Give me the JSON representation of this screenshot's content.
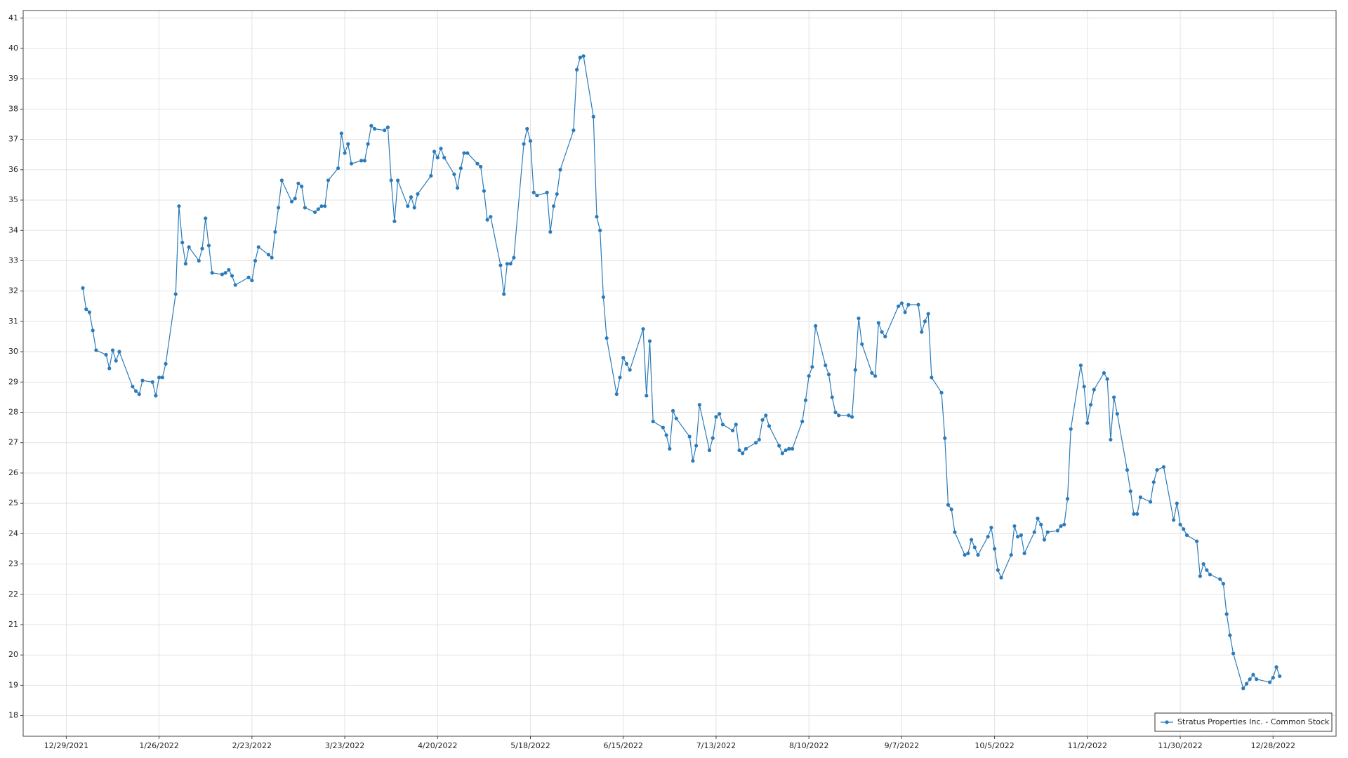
{
  "chart_data": {
    "type": "line",
    "x": [
      "2022-01-03",
      "2022-01-04",
      "2022-01-05",
      "2022-01-06",
      "2022-01-07",
      "2022-01-10",
      "2022-01-11",
      "2022-01-12",
      "2022-01-13",
      "2022-01-14",
      "2022-01-18",
      "2022-01-19",
      "2022-01-20",
      "2022-01-21",
      "2022-01-24",
      "2022-01-25",
      "2022-01-26",
      "2022-01-27",
      "2022-01-28",
      "2022-01-31",
      "2022-02-01",
      "2022-02-02",
      "2022-02-03",
      "2022-02-04",
      "2022-02-07",
      "2022-02-08",
      "2022-02-09",
      "2022-02-10",
      "2022-02-11",
      "2022-02-14",
      "2022-02-15",
      "2022-02-16",
      "2022-02-17",
      "2022-02-18",
      "2022-02-22",
      "2022-02-23",
      "2022-02-24",
      "2022-02-25",
      "2022-02-28",
      "2022-03-01",
      "2022-03-02",
      "2022-03-03",
      "2022-03-04",
      "2022-03-07",
      "2022-03-08",
      "2022-03-09",
      "2022-03-10",
      "2022-03-11",
      "2022-03-14",
      "2022-03-15",
      "2022-03-16",
      "2022-03-17",
      "2022-03-18",
      "2022-03-21",
      "2022-03-22",
      "2022-03-23",
      "2022-03-24",
      "2022-03-25",
      "2022-03-28",
      "2022-03-29",
      "2022-03-30",
      "2022-03-31",
      "2022-04-01",
      "2022-04-04",
      "2022-04-05",
      "2022-04-06",
      "2022-04-07",
      "2022-04-08",
      "2022-04-11",
      "2022-04-12",
      "2022-04-13",
      "2022-04-14",
      "2022-04-18",
      "2022-04-19",
      "2022-04-20",
      "2022-04-21",
      "2022-04-22",
      "2022-04-25",
      "2022-04-26",
      "2022-04-27",
      "2022-04-28",
      "2022-04-29",
      "2022-05-02",
      "2022-05-03",
      "2022-05-04",
      "2022-05-05",
      "2022-05-06",
      "2022-05-09",
      "2022-05-10",
      "2022-05-11",
      "2022-05-12",
      "2022-05-13",
      "2022-05-16",
      "2022-05-17",
      "2022-05-18",
      "2022-05-19",
      "2022-05-20",
      "2022-05-23",
      "2022-05-24",
      "2022-05-25",
      "2022-05-26",
      "2022-05-27",
      "2022-05-31",
      "2022-06-01",
      "2022-06-02",
      "2022-06-03",
      "2022-06-06",
      "2022-06-07",
      "2022-06-08",
      "2022-06-09",
      "2022-06-10",
      "2022-06-13",
      "2022-06-14",
      "2022-06-15",
      "2022-06-16",
      "2022-06-17",
      "2022-06-21",
      "2022-06-22",
      "2022-06-23",
      "2022-06-24",
      "2022-06-27",
      "2022-06-28",
      "2022-06-29",
      "2022-06-30",
      "2022-07-01",
      "2022-07-05",
      "2022-07-06",
      "2022-07-07",
      "2022-07-08",
      "2022-07-11",
      "2022-07-12",
      "2022-07-13",
      "2022-07-14",
      "2022-07-15",
      "2022-07-18",
      "2022-07-19",
      "2022-07-20",
      "2022-07-21",
      "2022-07-22",
      "2022-07-25",
      "2022-07-26",
      "2022-07-27",
      "2022-07-28",
      "2022-07-29",
      "2022-08-01",
      "2022-08-02",
      "2022-08-03",
      "2022-08-04",
      "2022-08-05",
      "2022-08-08",
      "2022-08-09",
      "2022-08-10",
      "2022-08-11",
      "2022-08-12",
      "2022-08-15",
      "2022-08-16",
      "2022-08-17",
      "2022-08-18",
      "2022-08-19",
      "2022-08-22",
      "2022-08-23",
      "2022-08-24",
      "2022-08-25",
      "2022-08-26",
      "2022-08-29",
      "2022-08-30",
      "2022-08-31",
      "2022-09-01",
      "2022-09-02",
      "2022-09-06",
      "2022-09-07",
      "2022-09-08",
      "2022-09-09",
      "2022-09-12",
      "2022-09-13",
      "2022-09-14",
      "2022-09-15",
      "2022-09-16",
      "2022-09-19",
      "2022-09-20",
      "2022-09-21",
      "2022-09-22",
      "2022-09-23",
      "2022-09-26",
      "2022-09-27",
      "2022-09-28",
      "2022-09-29",
      "2022-09-30",
      "2022-10-03",
      "2022-10-04",
      "2022-10-05",
      "2022-10-06",
      "2022-10-07",
      "2022-10-10",
      "2022-10-11",
      "2022-10-12",
      "2022-10-13",
      "2022-10-14",
      "2022-10-17",
      "2022-10-18",
      "2022-10-19",
      "2022-10-20",
      "2022-10-21",
      "2022-10-24",
      "2022-10-25",
      "2022-10-26",
      "2022-10-27",
      "2022-10-28",
      "2022-10-31",
      "2022-11-01",
      "2022-11-02",
      "2022-11-03",
      "2022-11-04",
      "2022-11-07",
      "2022-11-08",
      "2022-11-09",
      "2022-11-10",
      "2022-11-11",
      "2022-11-14",
      "2022-11-15",
      "2022-11-16",
      "2022-11-17",
      "2022-11-18",
      "2022-11-21",
      "2022-11-22",
      "2022-11-23",
      "2022-11-25",
      "2022-11-28",
      "2022-11-29",
      "2022-11-30",
      "2022-12-01",
      "2022-12-02",
      "2022-12-05",
      "2022-12-06",
      "2022-12-07",
      "2022-12-08",
      "2022-12-09",
      "2022-12-12",
      "2022-12-13",
      "2022-12-14",
      "2022-12-15",
      "2022-12-16",
      "2022-12-19",
      "2022-12-20",
      "2022-12-21",
      "2022-12-22",
      "2022-12-23",
      "2022-12-27",
      "2022-12-28",
      "2022-12-29",
      "2022-12-30"
    ],
    "series": [
      {
        "name": "Stratus Properties Inc. - Common Stock",
        "color": "#2b7bba",
        "values": [
          32.1,
          31.4,
          31.3,
          30.7,
          30.05,
          29.9,
          29.45,
          30.05,
          29.7,
          30.0,
          28.85,
          28.7,
          28.6,
          29.05,
          29.0,
          28.55,
          29.15,
          29.15,
          29.6,
          31.9,
          34.8,
          33.6,
          32.9,
          33.45,
          33.0,
          33.4,
          34.4,
          33.5,
          32.6,
          32.55,
          32.6,
          32.7,
          32.5,
          32.2,
          32.45,
          32.35,
          33.0,
          33.45,
          33.2,
          33.1,
          33.95,
          34.75,
          35.65,
          34.95,
          35.05,
          35.55,
          35.45,
          34.75,
          34.6,
          34.7,
          34.8,
          34.8,
          35.65,
          36.05,
          37.2,
          36.55,
          36.85,
          36.2,
          36.3,
          36.3,
          36.85,
          37.45,
          37.35,
          37.3,
          37.4,
          35.65,
          34.3,
          35.65,
          34.8,
          35.1,
          34.75,
          35.2,
          35.8,
          36.6,
          36.4,
          36.7,
          36.4,
          35.85,
          35.4,
          36.05,
          36.55,
          36.55,
          36.2,
          36.1,
          35.3,
          34.35,
          34.45,
          32.85,
          31.9,
          32.9,
          32.9,
          33.1,
          36.85,
          37.35,
          36.95,
          35.25,
          35.15,
          35.25,
          33.95,
          34.8,
          35.2,
          36.0,
          37.3,
          39.3,
          39.7,
          39.75,
          37.75,
          34.45,
          34.0,
          31.8,
          30.45,
          28.6,
          29.15,
          29.8,
          29.6,
          29.4,
          30.75,
          28.55,
          30.35,
          27.7,
          27.5,
          27.25,
          26.8,
          28.05,
          27.8,
          27.2,
          26.4,
          26.9,
          28.25,
          26.75,
          27.15,
          27.85,
          27.95,
          27.6,
          27.4,
          27.6,
          26.75,
          26.65,
          26.8,
          27.0,
          27.1,
          27.75,
          27.9,
          27.55,
          26.9,
          26.65,
          26.75,
          26.8,
          26.8,
          27.7,
          28.4,
          29.2,
          29.5,
          30.85,
          29.55,
          29.25,
          28.5,
          28.0,
          27.9,
          27.9,
          27.85,
          29.4,
          31.1,
          30.25,
          29.3,
          29.2,
          30.95,
          30.65,
          30.5,
          31.5,
          31.6,
          31.3,
          31.55,
          31.55,
          30.65,
          31.0,
          31.25,
          29.15,
          28.65,
          27.15,
          24.95,
          24.8,
          24.05,
          23.3,
          23.35,
          23.8,
          23.55,
          23.3,
          23.9,
          24.2,
          23.5,
          22.8,
          22.55,
          23.3,
          24.25,
          23.9,
          23.95,
          23.35,
          24.05,
          24.5,
          24.3,
          23.8,
          24.05,
          24.1,
          24.25,
          24.3,
          25.15,
          27.45,
          29.55,
          28.85,
          27.65,
          28.25,
          28.75,
          29.3,
          29.1,
          27.1,
          28.5,
          27.95,
          26.1,
          25.4,
          24.65,
          24.65,
          25.2,
          25.05,
          25.7,
          26.1,
          26.2,
          24.45,
          25.0,
          24.3,
          24.15,
          23.95,
          23.75,
          22.6,
          23.0,
          22.8,
          22.65,
          22.5,
          22.35,
          21.35,
          20.65,
          20.05,
          18.9,
          19.05,
          19.2,
          19.35,
          19.2,
          19.1,
          19.25,
          19.6,
          19.3
        ]
      }
    ],
    "xlim": [
      "2021-12-16",
      "2023-01-16"
    ],
    "xticks": [
      {
        "value": "2021-12-29",
        "label": "12/29/2021"
      },
      {
        "value": "2022-01-26",
        "label": "1/26/2022"
      },
      {
        "value": "2022-02-23",
        "label": "2/23/2022"
      },
      {
        "value": "2022-03-23",
        "label": "3/23/2022"
      },
      {
        "value": "2022-04-20",
        "label": "4/20/2022"
      },
      {
        "value": "2022-05-18",
        "label": "5/18/2022"
      },
      {
        "value": "2022-06-15",
        "label": "6/15/2022"
      },
      {
        "value": "2022-07-13",
        "label": "7/13/2022"
      },
      {
        "value": "2022-08-10",
        "label": "8/10/2022"
      },
      {
        "value": "2022-09-07",
        "label": "9/7/2022"
      },
      {
        "value": "2022-10-05",
        "label": "10/5/2022"
      },
      {
        "value": "2022-11-02",
        "label": "11/2/2022"
      },
      {
        "value": "2022-11-30",
        "label": "11/30/2022"
      },
      {
        "value": "2022-12-28",
        "label": "12/28/2022"
      }
    ],
    "ylim": [
      17.32,
      41.25
    ],
    "yticks": [
      18,
      19,
      20,
      21,
      22,
      23,
      24,
      25,
      26,
      27,
      28,
      29,
      30,
      31,
      32,
      33,
      34,
      35,
      36,
      37,
      38,
      39,
      40,
      41
    ],
    "grid": true,
    "markers": true,
    "legend": "lower right"
  }
}
